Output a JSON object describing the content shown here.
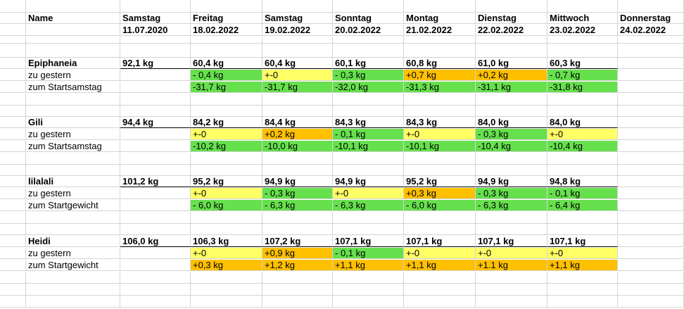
{
  "header": {
    "name_label": "Name",
    "days": [
      {
        "day": "Samstag",
        "date": "11.07.2020"
      },
      {
        "day": "Freitag",
        "date": "18.02.2022"
      },
      {
        "day": "Samstag",
        "date": "19.02.2022"
      },
      {
        "day": "Sonntag",
        "date": "20.02.2022"
      },
      {
        "day": "Montag",
        "date": "21.02.2022"
      },
      {
        "day": "Dienstag",
        "date": "22.02.2022"
      },
      {
        "day": "Mittwoch",
        "date": "23.02.2022"
      },
      {
        "day": "Donnerstag",
        "date": "24.02.2022"
      }
    ]
  },
  "colors": {
    "green": "#66e04d",
    "yellow": "#ffff66",
    "orange": "#ffc000"
  },
  "people": [
    {
      "name": "Epiphaneia",
      "weights": [
        "92,1 kg",
        "60,4 kg",
        "60,4 kg",
        "60,1 kg",
        "60,8 kg",
        "61,0 kg",
        "60,3 kg",
        ""
      ],
      "daily_label": "zu gestern",
      "daily": [
        {
          "v": "",
          "c": ""
        },
        {
          "v": "- 0,4 kg",
          "c": "green"
        },
        {
          "v": "+-0",
          "c": "yellow"
        },
        {
          "v": "- 0,3 kg",
          "c": "green"
        },
        {
          "v": "+0,7 kg",
          "c": "orange"
        },
        {
          "v": "+0,2 kg",
          "c": "orange"
        },
        {
          "v": "- 0,7 kg",
          "c": "green"
        },
        {
          "v": "",
          "c": ""
        }
      ],
      "total_label": "zum Startsamstag",
      "total": [
        {
          "v": "",
          "c": ""
        },
        {
          "v": "-31,7 kg",
          "c": "green"
        },
        {
          "v": "-31,7 kg",
          "c": "green"
        },
        {
          "v": "-32,0 kg",
          "c": "green"
        },
        {
          "v": "-31,3 kg",
          "c": "green"
        },
        {
          "v": "-31,1 kg",
          "c": "green"
        },
        {
          "v": "-31,8 kg",
          "c": "green"
        },
        {
          "v": "",
          "c": ""
        }
      ]
    },
    {
      "name": "Gili",
      "weights": [
        "94,4 kg",
        "84,2 kg",
        "84,4 kg",
        "84,3 kg",
        "84,3 kg",
        "84,0 kg",
        "84,0 kg",
        ""
      ],
      "daily_label": "zu gestern",
      "daily": [
        {
          "v": "",
          "c": ""
        },
        {
          "v": "+-0",
          "c": "yellow"
        },
        {
          "v": "+0,2 kg",
          "c": "orange"
        },
        {
          "v": "- 0,1 kg",
          "c": "green"
        },
        {
          "v": "+-0",
          "c": "yellow"
        },
        {
          "v": "- 0,3 kg",
          "c": "green"
        },
        {
          "v": "+-0",
          "c": "yellow"
        },
        {
          "v": "",
          "c": ""
        }
      ],
      "total_label": "zum Startsamstag",
      "total": [
        {
          "v": "",
          "c": ""
        },
        {
          "v": "-10,2 kg",
          "c": "green"
        },
        {
          "v": "-10,0 kg",
          "c": "green"
        },
        {
          "v": "-10,1 kg",
          "c": "green"
        },
        {
          "v": "-10,1 kg",
          "c": "green"
        },
        {
          "v": "-10,4 kg",
          "c": "green"
        },
        {
          "v": "-10,4 kg",
          "c": "green"
        },
        {
          "v": "",
          "c": ""
        }
      ]
    },
    {
      "name": "lilalali",
      "weights": [
        "101,2 kg",
        "95,2 kg",
        "94,9 kg",
        "94,9 kg",
        "95,2 kg",
        "94,9 kg",
        "94,8 kg",
        ""
      ],
      "daily_label": "zu gestern",
      "daily": [
        {
          "v": "",
          "c": ""
        },
        {
          "v": "+-0",
          "c": "yellow"
        },
        {
          "v": "- 0,3 kg",
          "c": "green"
        },
        {
          "v": "+-0",
          "c": "yellow"
        },
        {
          "v": "+0,3 kg",
          "c": "orange"
        },
        {
          "v": "- 0,3 kg",
          "c": "green"
        },
        {
          "v": "- 0,1 kg",
          "c": "green"
        },
        {
          "v": "",
          "c": ""
        }
      ],
      "total_label": "zum Startgewicht",
      "total": [
        {
          "v": "",
          "c": ""
        },
        {
          "v": "- 6,0 kg",
          "c": "green"
        },
        {
          "v": "- 6,3 kg",
          "c": "green"
        },
        {
          "v": "- 6,3 kg",
          "c": "green"
        },
        {
          "v": "- 6,0 kg",
          "c": "green"
        },
        {
          "v": "- 6,3 kg",
          "c": "green"
        },
        {
          "v": "- 6,4 kg",
          "c": "green"
        },
        {
          "v": "",
          "c": ""
        }
      ]
    },
    {
      "name": "Heidi",
      "weights": [
        "106,0 kg",
        "106,3 kg",
        "107,2 kg",
        "107,1 kg",
        "107,1 kg",
        "107,1 kg",
        "107,1 kg",
        ""
      ],
      "daily_label": "zu gestern",
      "daily": [
        {
          "v": "",
          "c": ""
        },
        {
          "v": "+-0",
          "c": "yellow"
        },
        {
          "v": "+0,9 kg",
          "c": "orange"
        },
        {
          "v": "- 0,1 kg",
          "c": "green"
        },
        {
          "v": "+-0",
          "c": "yellow"
        },
        {
          "v": "+-0",
          "c": "yellow"
        },
        {
          "v": "+-0",
          "c": "yellow"
        },
        {
          "v": "",
          "c": ""
        }
      ],
      "total_label": "zum Startgewicht",
      "total": [
        {
          "v": "",
          "c": ""
        },
        {
          "v": "+0,3 kg",
          "c": "orange"
        },
        {
          "v": "+1,2 kg",
          "c": "orange"
        },
        {
          "v": "+1,1 kg",
          "c": "orange"
        },
        {
          "v": "+1,1 kg",
          "c": "orange"
        },
        {
          "v": "+1.1 kg",
          "c": "orange"
        },
        {
          "v": "+1,1 kg",
          "c": "orange"
        },
        {
          "v": "",
          "c": ""
        }
      ]
    }
  ]
}
